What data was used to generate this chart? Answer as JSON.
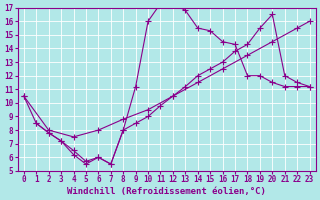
{
  "xlabel": "Windchill (Refroidissement éolien,°C)",
  "background_color": "#b2e8e8",
  "line_color": "#8b008b",
  "grid_color": "#ffffff",
  "xlim": [
    -0.5,
    23.5
  ],
  "ylim": [
    5,
    17
  ],
  "xticks": [
    0,
    1,
    2,
    3,
    4,
    5,
    6,
    7,
    8,
    9,
    10,
    11,
    12,
    13,
    14,
    15,
    16,
    17,
    18,
    19,
    20,
    21,
    22,
    23
  ],
  "yticks": [
    5,
    6,
    7,
    8,
    9,
    10,
    11,
    12,
    13,
    14,
    15,
    16,
    17
  ],
  "line1_x": [
    0,
    1,
    2,
    3,
    4,
    5,
    6,
    7,
    8,
    9,
    10,
    11,
    12,
    13,
    14,
    15,
    16,
    17,
    18,
    19,
    20,
    21,
    22,
    23
  ],
  "line1_y": [
    10.5,
    8.5,
    7.8,
    7.2,
    6.2,
    5.5,
    6.0,
    5.5,
    8.0,
    11.2,
    16.0,
    17.3,
    17.3,
    16.8,
    15.5,
    15.3,
    14.5,
    14.3,
    12.0,
    12.0,
    11.5,
    11.2,
    11.2,
    11.2
  ],
  "line2_x": [
    0,
    2,
    4,
    6,
    8,
    10,
    12,
    14,
    16,
    18,
    20,
    22,
    23
  ],
  "line2_y": [
    10.5,
    8.0,
    7.5,
    8.0,
    8.8,
    9.5,
    10.5,
    11.5,
    12.5,
    13.5,
    14.5,
    15.5,
    16.0
  ],
  "line3_x": [
    1,
    2,
    3,
    4,
    5,
    6,
    7,
    8,
    9,
    10,
    11,
    12,
    13,
    14,
    15,
    16,
    17,
    18,
    19,
    20,
    21,
    22,
    23
  ],
  "line3_y": [
    8.5,
    7.8,
    7.2,
    6.5,
    5.7,
    6.0,
    5.5,
    8.0,
    8.5,
    9.0,
    9.8,
    10.5,
    11.2,
    12.0,
    12.5,
    13.0,
    13.8,
    14.3,
    15.5,
    16.5,
    12.0,
    11.5,
    11.2
  ],
  "marker": "+",
  "markersize": 4,
  "linewidth": 0.8,
  "tick_fontsize": 5.5,
  "xlabel_fontsize": 6.5,
  "dpi": 100
}
